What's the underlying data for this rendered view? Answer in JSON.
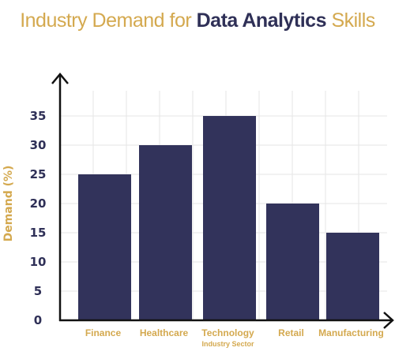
{
  "title": {
    "pre": "Industry Demand for ",
    "bold": "Data Analytics",
    "post": " Skills"
  },
  "chart_data": {
    "type": "bar",
    "categories": [
      "Finance",
      "Healthcare",
      "Technology",
      "Retail",
      "Manufacturing"
    ],
    "values": [
      25,
      30,
      35,
      20,
      15
    ],
    "xlabel": "Industry Sector",
    "ylabel": "Demand (%)",
    "ylim": [
      0,
      35
    ],
    "yticks": [
      0,
      5,
      10,
      15,
      20,
      25,
      30,
      35
    ],
    "grid": true,
    "legend": "none"
  },
  "colors": {
    "bar": "#32335b",
    "axis": "#111111",
    "grid": "#e6e6e6",
    "accent": "#d4a94f",
    "ink": "#2f3057"
  }
}
